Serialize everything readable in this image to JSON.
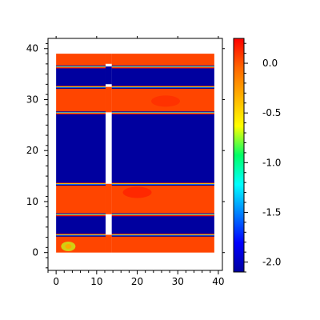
{
  "chart_data": {
    "type": "heatmap",
    "title": "",
    "xlabel": "",
    "ylabel": "",
    "xlim": [
      -2,
      41
    ],
    "ylim": [
      -3.5,
      42
    ],
    "x_ticks": [
      0,
      10,
      20,
      30,
      40
    ],
    "y_ticks": [
      0,
      10,
      20,
      30,
      40
    ],
    "domain": {
      "x": [
        0,
        39
      ],
      "y": [
        0,
        39
      ]
    },
    "gap": {
      "x": [
        12.2,
        13.7
      ]
    },
    "gap_bridges_y": [
      [
        0,
        3.5
      ],
      [
        7.5,
        13.5
      ],
      [
        27.5,
        32.5
      ],
      [
        33,
        36.5
      ],
      [
        37,
        39
      ]
    ],
    "bands": [
      {
        "y": [
          0,
          3.5
        ],
        "value": 0.05
      },
      {
        "y": [
          3.5,
          7.5
        ],
        "value": -2.1
      },
      {
        "y": [
          7.5,
          13.5
        ],
        "value": 0.05
      },
      {
        "y": [
          13.5,
          27.5
        ],
        "value": -2.1
      },
      {
        "y": [
          27.5,
          32.5
        ],
        "value": 0.05
      },
      {
        "y": [
          32.5,
          36.5
        ],
        "value": -2.1
      },
      {
        "y": [
          36.5,
          39
        ],
        "value": 0.05
      }
    ],
    "hotspots": [
      {
        "x": 3,
        "y": 1.2,
        "value": -0.7
      },
      {
        "x": 20,
        "y": 11.8,
        "value": 0.2
      },
      {
        "x": 27,
        "y": 29.7,
        "value": 0.15
      }
    ],
    "colorbar": {
      "range": [
        -2.1,
        0.25
      ],
      "ticks": [
        0.0,
        -0.5,
        -1.0,
        -1.5,
        -2.0
      ],
      "tick_labels": [
        "0.0",
        "-0.5",
        "-1.0",
        "-1.5",
        "-2.0"
      ]
    },
    "colors": {
      "low": "#00009a",
      "high": "#ff5a00",
      "peak": "#ff1a00"
    }
  }
}
